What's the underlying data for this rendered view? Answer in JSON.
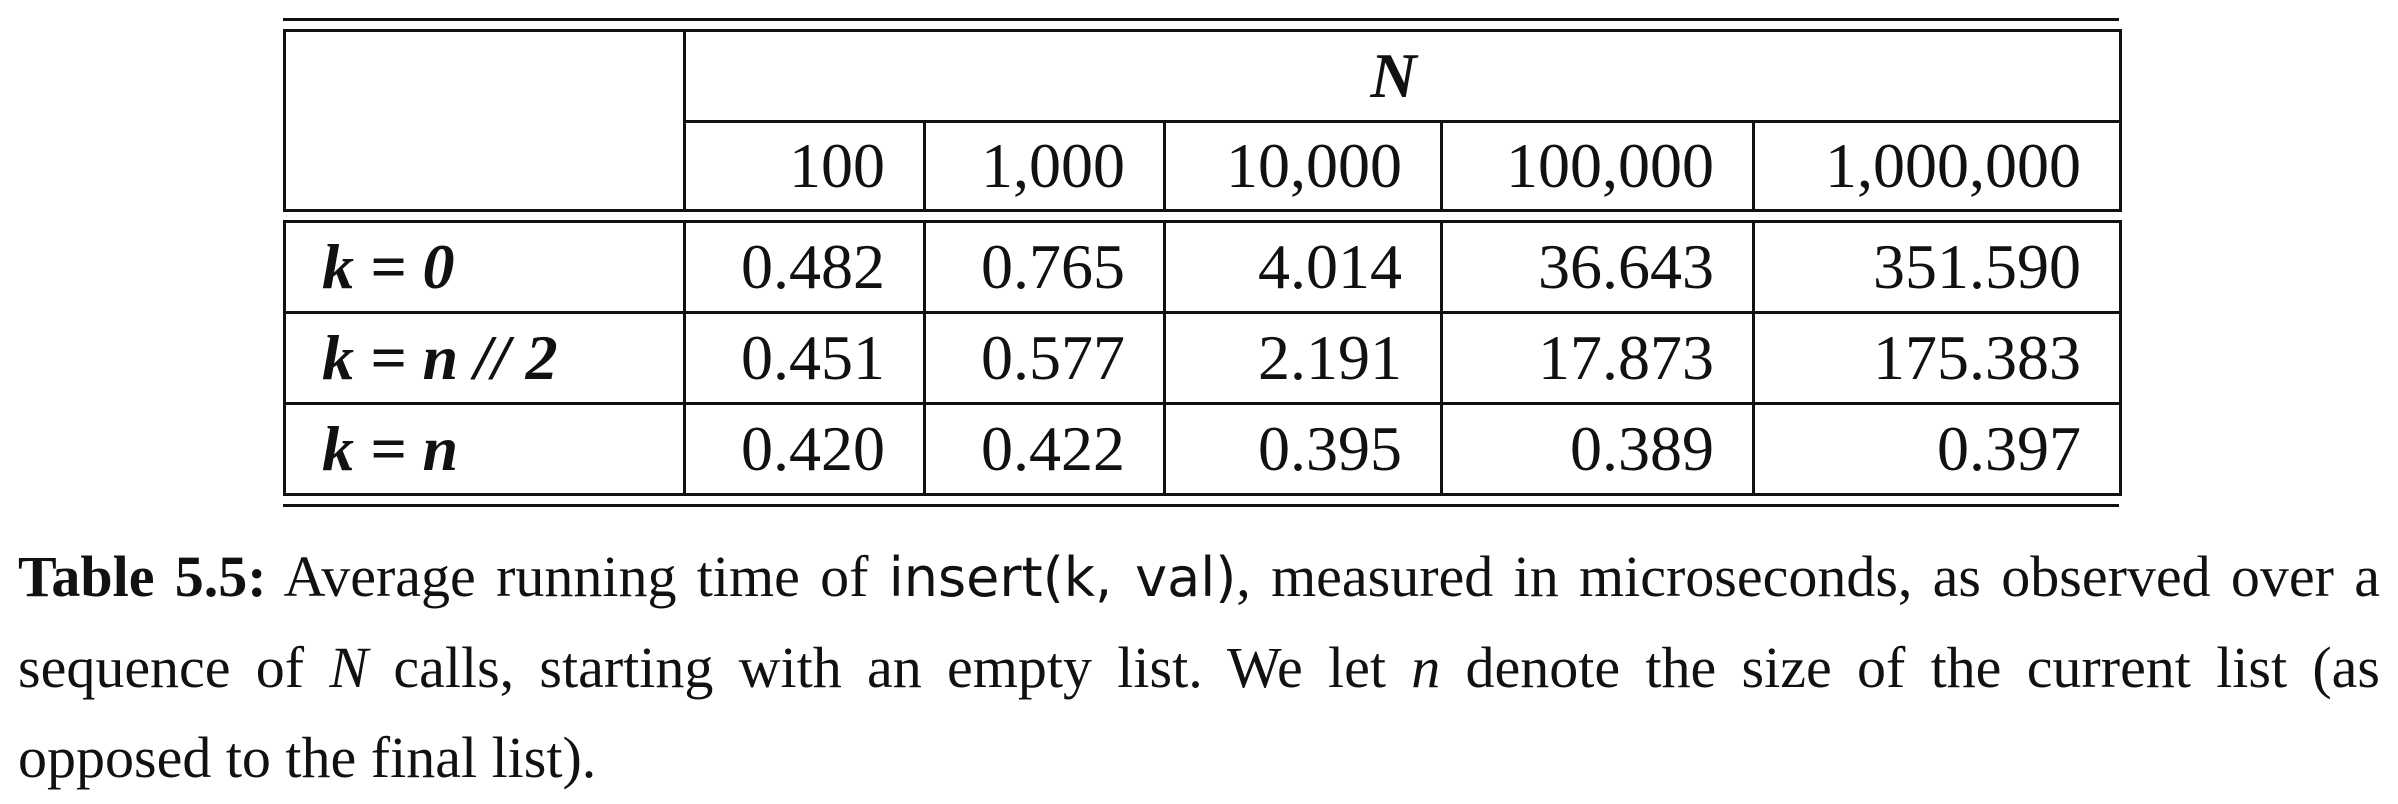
{
  "table": {
    "n_header": "N",
    "column_headers": [
      "100",
      "1,000",
      "10,000",
      "100,000",
      "1,000,000"
    ],
    "rows": [
      {
        "label": "k = 0",
        "values": [
          "0.482",
          "0.765",
          "4.014",
          "36.643",
          "351.590"
        ]
      },
      {
        "label": "k = n // 2",
        "values": [
          "0.451",
          "0.577",
          "2.191",
          "17.873",
          "175.383"
        ]
      },
      {
        "label": "k = n",
        "values": [
          "0.420",
          "0.422",
          "0.395",
          "0.389",
          "0.397"
        ]
      }
    ]
  },
  "caption": {
    "label": "Table 5.5:",
    "text_1": " Average running time of ",
    "code": "insert(k, val)",
    "text_2": ", measured in microseconds, as observed over a sequence of ",
    "var_N": "N",
    "text_3": " calls, starting with an empty list. We let ",
    "var_n": "n",
    "text_4": " denote the size of the current list (as opposed to the final list)."
  }
}
